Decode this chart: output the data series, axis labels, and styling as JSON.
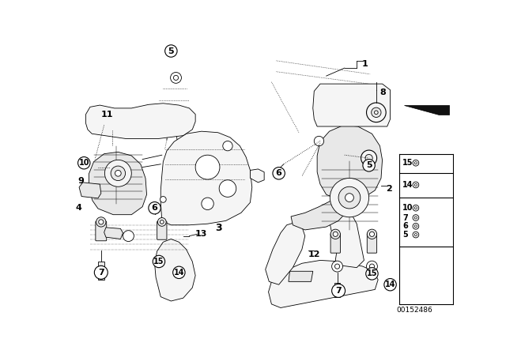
{
  "background_color": "#ffffff",
  "image_number": "00152486",
  "line_color": "#000000",
  "fill_light": "#f5f5f5",
  "fill_mid": "#e8e8e8",
  "fill_dark": "#cccccc"
}
